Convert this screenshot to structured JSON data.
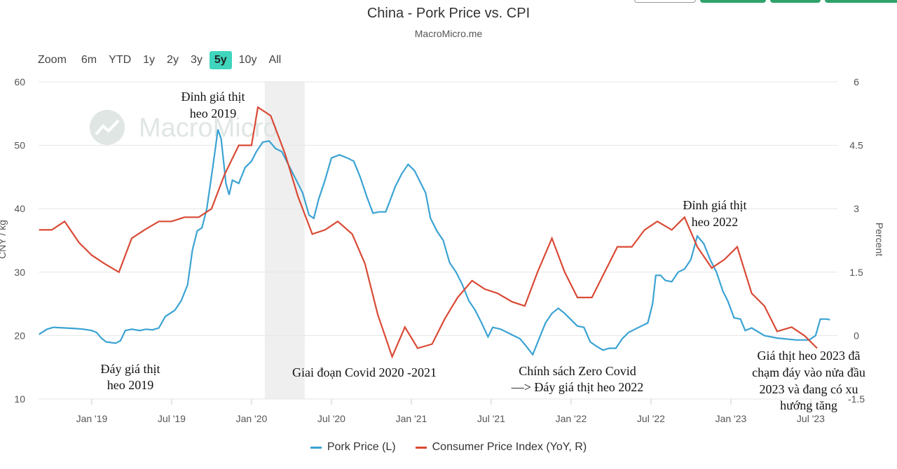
{
  "header": {
    "title": "China - Pork Price vs. CPI",
    "subtitle": "MacroMicro.me"
  },
  "range_selector": {
    "zoom_label": "Zoom",
    "buttons": [
      "6m",
      "YTD",
      "1y",
      "2y",
      "3y",
      "5y",
      "10y",
      "All"
    ],
    "active": "5y"
  },
  "watermark": "MacroMicro",
  "colors": {
    "pork": "#3ba3d3",
    "cpi": "#d94a35",
    "shade": "#efefef",
    "grid": "#e6e6e6",
    "active_btn": "#3fd6bd"
  },
  "chart_data": {
    "type": "line",
    "title": "China - Pork Price vs. CPI",
    "x_range": [
      2018.667,
      2023.667
    ],
    "x_ticks": [
      {
        "label": "Jan '19",
        "value": 2019.0
      },
      {
        "label": "Jul '19",
        "value": 2019.5
      },
      {
        "label": "Jan '20",
        "value": 2020.0
      },
      {
        "label": "Jul '20",
        "value": 2020.5
      },
      {
        "label": "Jan '21",
        "value": 2021.0
      },
      {
        "label": "Jul '21",
        "value": 2021.5
      },
      {
        "label": "Jan '22",
        "value": 2022.0
      },
      {
        "label": "Jul '22",
        "value": 2022.5
      },
      {
        "label": "Jan '23",
        "value": 2023.0
      },
      {
        "label": "Jul '23",
        "value": 2023.5
      }
    ],
    "y_left": {
      "label": "CNY / kg",
      "range": [
        10,
        60
      ],
      "ticks": [
        "10",
        "20",
        "30",
        "40",
        "50",
        "60"
      ]
    },
    "y_right": {
      "label": "Percent",
      "range": [
        -1.5,
        6
      ],
      "ticks": [
        "-1.5",
        "0",
        "1.5",
        "3",
        "4.5",
        "6"
      ]
    },
    "shaded_band": [
      2020.083,
      2020.333
    ],
    "series": [
      {
        "name": "Pork Price (L)",
        "axis": "left",
        "legend": "Pork Price (L)",
        "points": [
          [
            2018.67,
            20.2
          ],
          [
            2018.72,
            21.0
          ],
          [
            2018.76,
            21.3
          ],
          [
            2018.83,
            21.2
          ],
          [
            2018.9,
            21.1
          ],
          [
            2018.95,
            21.0
          ],
          [
            2019.0,
            20.8
          ],
          [
            2019.03,
            20.5
          ],
          [
            2019.06,
            19.6
          ],
          [
            2019.09,
            19.0
          ],
          [
            2019.12,
            18.9
          ],
          [
            2019.15,
            18.8
          ],
          [
            2019.18,
            19.2
          ],
          [
            2019.21,
            20.8
          ],
          [
            2019.25,
            21.0
          ],
          [
            2019.3,
            20.8
          ],
          [
            2019.34,
            21.0
          ],
          [
            2019.38,
            20.9
          ],
          [
            2019.42,
            21.2
          ],
          [
            2019.46,
            23.0
          ],
          [
            2019.52,
            24.0
          ],
          [
            2019.56,
            25.5
          ],
          [
            2019.6,
            28.0
          ],
          [
            2019.63,
            33.5
          ],
          [
            2019.66,
            36.5
          ],
          [
            2019.69,
            37.0
          ],
          [
            2019.72,
            40.0
          ],
          [
            2019.76,
            47.0
          ],
          [
            2019.79,
            52.5
          ],
          [
            2019.81,
            51.0
          ],
          [
            2019.84,
            44.0
          ],
          [
            2019.86,
            42.2
          ],
          [
            2019.88,
            44.5
          ],
          [
            2019.92,
            44.0
          ],
          [
            2019.96,
            46.5
          ],
          [
            2020.0,
            47.5
          ],
          [
            2020.03,
            49.0
          ],
          [
            2020.07,
            50.5
          ],
          [
            2020.11,
            50.7
          ],
          [
            2020.15,
            49.5
          ],
          [
            2020.19,
            49.0
          ],
          [
            2020.24,
            46.5
          ],
          [
            2020.28,
            44.5
          ],
          [
            2020.32,
            42.5
          ],
          [
            2020.36,
            39.0
          ],
          [
            2020.39,
            38.5
          ],
          [
            2020.42,
            41.5
          ],
          [
            2020.46,
            44.5
          ],
          [
            2020.5,
            48.0
          ],
          [
            2020.55,
            48.5
          ],
          [
            2020.6,
            48.0
          ],
          [
            2020.64,
            47.5
          ],
          [
            2020.68,
            45.0
          ],
          [
            2020.72,
            42.0
          ],
          [
            2020.76,
            39.3
          ],
          [
            2020.8,
            39.5
          ],
          [
            2020.84,
            39.5
          ],
          [
            2020.87,
            41.5
          ],
          [
            2020.9,
            43.5
          ],
          [
            2020.94,
            45.5
          ],
          [
            2020.98,
            47.0
          ],
          [
            2021.02,
            46.0
          ],
          [
            2021.06,
            44.0
          ],
          [
            2021.09,
            42.5
          ],
          [
            2021.12,
            38.5
          ],
          [
            2021.16,
            36.5
          ],
          [
            2021.2,
            35.0
          ],
          [
            2021.24,
            31.5
          ],
          [
            2021.28,
            30.0
          ],
          [
            2021.32,
            28.0
          ],
          [
            2021.36,
            25.5
          ],
          [
            2021.4,
            24.0
          ],
          [
            2021.44,
            22.0
          ],
          [
            2021.48,
            19.8
          ],
          [
            2021.51,
            21.3
          ],
          [
            2021.56,
            21.0
          ],
          [
            2021.6,
            20.5
          ],
          [
            2021.64,
            20.0
          ],
          [
            2021.68,
            19.5
          ],
          [
            2021.72,
            18.3
          ],
          [
            2021.76,
            17.0
          ],
          [
            2021.8,
            19.5
          ],
          [
            2021.84,
            22.0
          ],
          [
            2021.88,
            23.5
          ],
          [
            2021.92,
            24.3
          ],
          [
            2021.96,
            23.5
          ],
          [
            2022.0,
            22.5
          ],
          [
            2022.04,
            21.5
          ],
          [
            2022.08,
            21.3
          ],
          [
            2022.12,
            19.0
          ],
          [
            2022.16,
            18.3
          ],
          [
            2022.2,
            17.7
          ],
          [
            2022.24,
            18.0
          ],
          [
            2022.28,
            18.0
          ],
          [
            2022.32,
            19.5
          ],
          [
            2022.36,
            20.5
          ],
          [
            2022.4,
            21.0
          ],
          [
            2022.44,
            21.5
          ],
          [
            2022.48,
            22.0
          ],
          [
            2022.51,
            25.0
          ],
          [
            2022.53,
            29.5
          ],
          [
            2022.56,
            29.5
          ],
          [
            2022.59,
            28.7
          ],
          [
            2022.63,
            28.5
          ],
          [
            2022.67,
            30.0
          ],
          [
            2022.71,
            30.5
          ],
          [
            2022.75,
            32.0
          ],
          [
            2022.79,
            35.7
          ],
          [
            2022.83,
            34.5
          ],
          [
            2022.87,
            32.0
          ],
          [
            2022.91,
            30.0
          ],
          [
            2022.95,
            27.0
          ],
          [
            2022.98,
            25.5
          ],
          [
            2023.02,
            22.8
          ],
          [
            2023.06,
            22.6
          ],
          [
            2023.09,
            20.8
          ],
          [
            2023.13,
            21.2
          ],
          [
            2023.17,
            20.6
          ],
          [
            2023.21,
            20.0
          ],
          [
            2023.25,
            19.8
          ],
          [
            2023.29,
            19.6
          ],
          [
            2023.33,
            19.5
          ],
          [
            2023.37,
            19.4
          ],
          [
            2023.41,
            19.3
          ],
          [
            2023.45,
            19.3
          ],
          [
            2023.49,
            19.3
          ],
          [
            2023.53,
            20.0
          ],
          [
            2023.56,
            22.6
          ],
          [
            2023.6,
            22.6
          ],
          [
            2023.62,
            22.5
          ]
        ]
      },
      {
        "name": "Consumer Price Index (YoY, R)",
        "axis": "right",
        "legend": "Consumer Price Index (YoY, R)",
        "points": [
          [
            2018.67,
            2.5
          ],
          [
            2018.75,
            2.5
          ],
          [
            2018.83,
            2.7
          ],
          [
            2018.92,
            2.2
          ],
          [
            2019.0,
            1.9
          ],
          [
            2019.08,
            1.7
          ],
          [
            2019.17,
            1.5
          ],
          [
            2019.25,
            2.3
          ],
          [
            2019.33,
            2.5
          ],
          [
            2019.42,
            2.7
          ],
          [
            2019.5,
            2.7
          ],
          [
            2019.58,
            2.8
          ],
          [
            2019.67,
            2.8
          ],
          [
            2019.75,
            3.0
          ],
          [
            2019.83,
            3.8
          ],
          [
            2019.92,
            4.5
          ],
          [
            2020.0,
            4.5
          ],
          [
            2020.04,
            5.4
          ],
          [
            2020.12,
            5.2
          ],
          [
            2020.21,
            4.3
          ],
          [
            2020.29,
            3.3
          ],
          [
            2020.38,
            2.4
          ],
          [
            2020.46,
            2.5
          ],
          [
            2020.54,
            2.7
          ],
          [
            2020.63,
            2.4
          ],
          [
            2020.71,
            1.7
          ],
          [
            2020.79,
            0.5
          ],
          [
            2020.88,
            -0.5
          ],
          [
            2020.96,
            0.2
          ],
          [
            2021.04,
            -0.3
          ],
          [
            2021.13,
            -0.2
          ],
          [
            2021.21,
            0.4
          ],
          [
            2021.29,
            0.9
          ],
          [
            2021.38,
            1.3
          ],
          [
            2021.46,
            1.1
          ],
          [
            2021.54,
            1.0
          ],
          [
            2021.63,
            0.8
          ],
          [
            2021.71,
            0.7
          ],
          [
            2021.79,
            1.5
          ],
          [
            2021.88,
            2.3
          ],
          [
            2021.96,
            1.5
          ],
          [
            2022.04,
            0.9
          ],
          [
            2022.13,
            0.9
          ],
          [
            2022.21,
            1.5
          ],
          [
            2022.29,
            2.1
          ],
          [
            2022.38,
            2.1
          ],
          [
            2022.46,
            2.5
          ],
          [
            2022.54,
            2.7
          ],
          [
            2022.63,
            2.5
          ],
          [
            2022.71,
            2.8
          ],
          [
            2022.79,
            2.1
          ],
          [
            2022.88,
            1.6
          ],
          [
            2022.96,
            1.8
          ],
          [
            2023.04,
            2.1
          ],
          [
            2023.13,
            1.0
          ],
          [
            2023.21,
            0.7
          ],
          [
            2023.29,
            0.1
          ],
          [
            2023.38,
            0.2
          ],
          [
            2023.46,
            0.0
          ],
          [
            2023.54,
            -0.3
          ]
        ]
      }
    ],
    "annotations": [
      {
        "id": "peak-2019",
        "lines": [
          "Đỉnh giá thịt",
          "heo 2019"
        ]
      },
      {
        "id": "bottom-2019",
        "lines": [
          "Đáy giá thịt",
          "heo 2019"
        ]
      },
      {
        "id": "covid-period",
        "lines": [
          "Giai đoạn Covid 2020 -2021"
        ]
      },
      {
        "id": "zero-covid",
        "lines": [
          "Chính sách Zero Covid",
          "—> Đáy giá thịt heo 2022"
        ]
      },
      {
        "id": "peak-2022",
        "lines": [
          "Đỉnh giá thịt",
          "heo 2022"
        ]
      },
      {
        "id": "outlook-2023",
        "lines": [
          "Giá thịt heo 2023 đã",
          "chạm đáy vào nửa đầu",
          "2023 và đang có xu",
          "hướng tăng"
        ]
      }
    ]
  }
}
